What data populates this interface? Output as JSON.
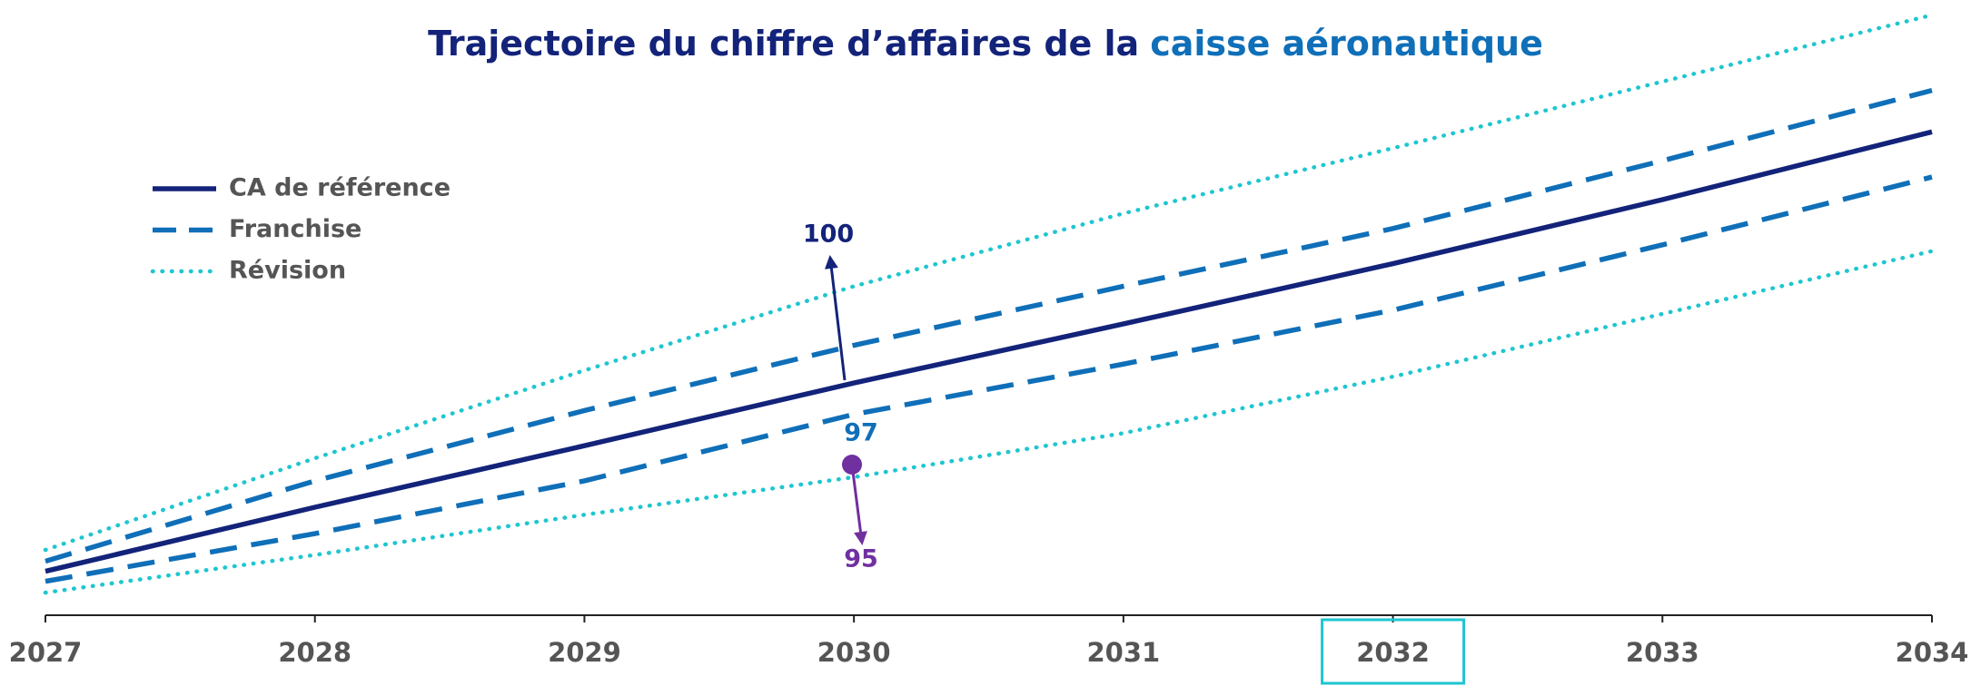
{
  "chart_data": {
    "type": "line",
    "title": "Trajectoire du chiffre d’affaires de la",
    "title_highlight": "caisse aéronautique",
    "x": [
      2027,
      2028,
      2029,
      2030,
      2031,
      2032,
      2033,
      2034
    ],
    "xlim": [
      2027,
      2034
    ],
    "xticks": [
      2027,
      2028,
      2029,
      2030,
      2031,
      2032,
      2033,
      2034
    ],
    "ylim": [
      0,
      490
    ],
    "highlight_x": 2032,
    "series": [
      {
        "name": "CA de référence",
        "color": "#13237a",
        "style": "solid",
        "values": [
          35,
          86,
          135,
          185,
          232,
          280,
          331,
          385
        ]
      },
      {
        "name": "Franchise",
        "color": "#0f6fb8",
        "style": "dashed",
        "values": [
          43,
          107,
          163,
          215,
          262,
          308,
          362,
          418
        ],
        "values_lower": [
          27,
          65,
          107,
          160,
          200,
          243,
          295,
          349
        ]
      },
      {
        "name": "Révision",
        "color": "#1ec6d0",
        "style": "dotted",
        "values": [
          52,
          125,
          195,
          262,
          320,
          372,
          425,
          478
        ],
        "values_lower": [
          18,
          48,
          80,
          110,
          145,
          190,
          240,
          290
        ]
      }
    ],
    "annotations": [
      {
        "value": 100,
        "color": "#13237a"
      },
      {
        "value": 97,
        "color": "#0f6fb8"
      },
      {
        "value": 95,
        "color": "#7030a0"
      }
    ]
  }
}
